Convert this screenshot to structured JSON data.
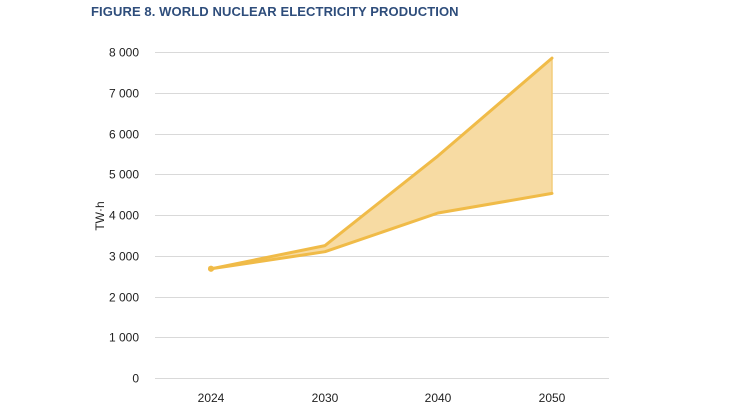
{
  "figure": {
    "title": "FIGURE 8. WORLD NUCLEAR ELECTRICITY PRODUCTION"
  },
  "chart_data": {
    "type": "area",
    "title": "FIGURE 8. WORLD NUCLEAR ELECTRICITY PRODUCTION",
    "xlabel": "",
    "ylabel": "TW·h",
    "categories": [
      "2024",
      "2030",
      "2040",
      "2050"
    ],
    "series": [
      {
        "values": [
          2680,
          3250,
          5450,
          7850
        ]
      },
      {
        "values": [
          2680,
          3100,
          4050,
          4530
        ]
      }
    ],
    "ylim": [
      0,
      8000
    ],
    "yticks": [
      0,
      1000,
      2000,
      3000,
      4000,
      5000,
      6000,
      7000,
      8000
    ],
    "ytick_labels": [
      "0",
      "1 000",
      "2 000",
      "3 000",
      "4 000",
      "5 000",
      "6 000",
      "7 000",
      "8 000"
    ],
    "grid": true,
    "legend": "none",
    "colors": {
      "line": "#f0bb48",
      "fill": "#f7dba3",
      "grid": "#d9d9d9"
    }
  }
}
